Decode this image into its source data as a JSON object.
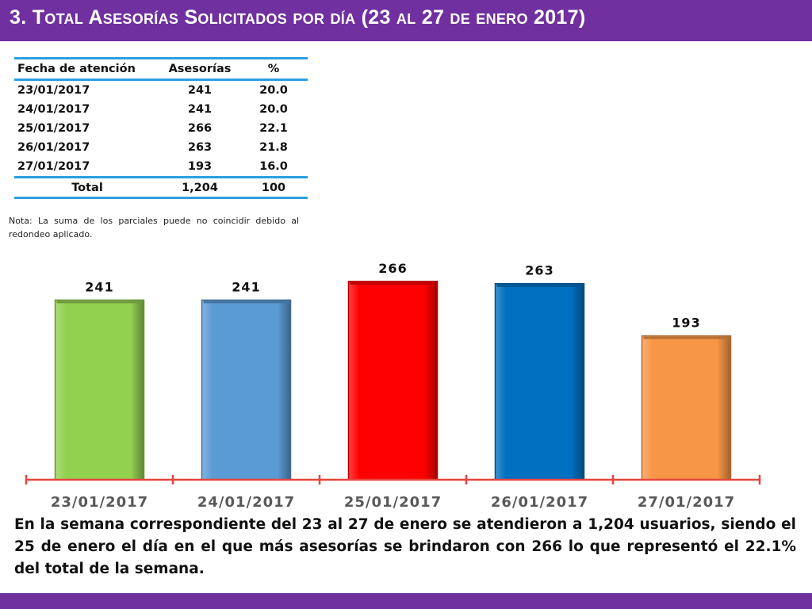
{
  "title": "3.  Total Asesorías Solicitados por día  (23 al 27 de enero  2017)",
  "table": {
    "headers": [
      "Fecha de atención",
      "Asesorías",
      "%"
    ],
    "rows": [
      {
        "date": "23/01/2017",
        "count": "241",
        "pct": "20.0"
      },
      {
        "date": "24/01/2017",
        "count": "241",
        "pct": "20.0"
      },
      {
        "date": "25/01/2017",
        "count": "266",
        "pct": "22.1"
      },
      {
        "date": "26/01/2017",
        "count": "263",
        "pct": "21.8"
      },
      {
        "date": "27/01/2017",
        "count": "193",
        "pct": "16.0"
      }
    ],
    "total": {
      "label": "Total",
      "count": "1,204",
      "pct": "100"
    }
  },
  "note": "Nota: La suma de los parciales puede no coincidir debido al redondeo aplicado.",
  "chart_data": {
    "type": "bar",
    "title": "",
    "xlabel": "",
    "ylabel": "",
    "categories": [
      "23/01/2017",
      "24/01/2017",
      "25/01/2017",
      "26/01/2017",
      "27/01/2017"
    ],
    "values": [
      241,
      241,
      266,
      263,
      193
    ],
    "data_labels": [
      "241",
      "241",
      "266",
      "263",
      "193"
    ],
    "colors": [
      "#92d050",
      "#5b9bd5",
      "#ff0000",
      "#0070c0",
      "#f79646"
    ],
    "axis_color": "#e8453c",
    "ylim": [
      0,
      275
    ],
    "grid": false,
    "legend": "none"
  },
  "summary": "En la semana correspondiente del 23 al 27 de enero se atendieron a 1,204 usuarios, siendo el 25 de enero el día en el que más asesorías se brindaron con 266 lo que representó el 22.1% del total de la semana.",
  "colors": {
    "header_bar": "#7030a0",
    "table_rule": "#2aa0e0"
  }
}
